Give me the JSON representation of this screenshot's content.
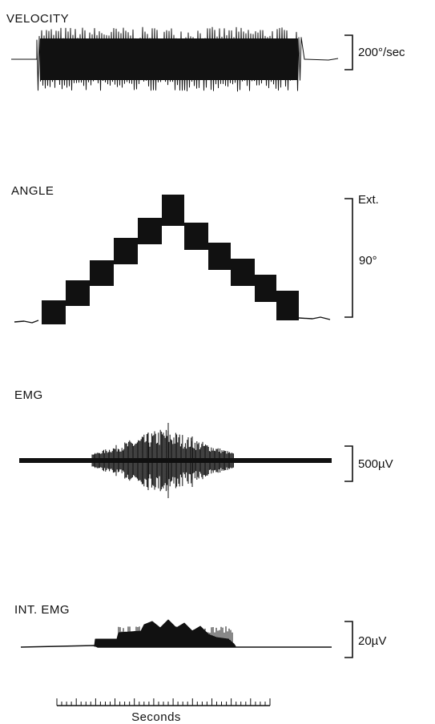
{
  "panels": [
    {
      "id": "velocity",
      "label": "VELOCITY",
      "scale_text": "200°/sec",
      "trace": "velocity-trace"
    },
    {
      "id": "angle",
      "label": "ANGLE",
      "scale_top_text": "Ext.",
      "scale_text": "90°",
      "trace": "angle-trace"
    },
    {
      "id": "emg",
      "label": "EMG",
      "scale_text": "500µV",
      "trace": "emg-trace"
    },
    {
      "id": "int-emg",
      "label": "INT. EMG",
      "scale_text": "20µV",
      "trace": "int-emg-trace"
    }
  ],
  "time_axis": {
    "label": "Seconds"
  },
  "colors": {
    "ink": "#111111",
    "background": "#ffffff"
  }
}
